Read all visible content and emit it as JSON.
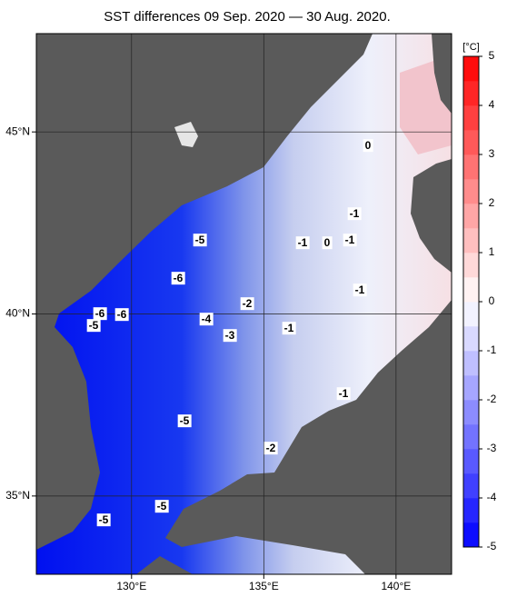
{
  "chart_data": {
    "type": "map",
    "title": "SST differences 09 Sep. 2020 — 30 Aug. 2020.",
    "xlim": [
      126.4,
      142.1
    ],
    "ylim": [
      32.85,
      47.7
    ],
    "xticks": [
      {
        "value": 130,
        "label": "130°E"
      },
      {
        "value": 135,
        "label": "135°E"
      },
      {
        "value": 140,
        "label": "140°E"
      }
    ],
    "yticks": [
      {
        "value": 35,
        "label": "35°N"
      },
      {
        "value": 40,
        "label": "40°N"
      },
      {
        "value": 45,
        "label": "45°N"
      }
    ],
    "grid": true,
    "colorbar": {
      "label": "[°C]",
      "lim": [
        -5,
        5
      ],
      "ticks": [
        -5,
        -4,
        -3,
        -2,
        -1,
        0,
        1,
        2,
        3,
        4,
        5
      ],
      "colors": [
        "#0000ff",
        "#ffffff",
        "#ff0000"
      ]
    },
    "contour_labels": [
      -5,
      -6,
      -6,
      -6,
      -5,
      -4,
      -3,
      -2,
      -1,
      -1,
      -1,
      0,
      -1,
      0,
      -1,
      -1,
      -5,
      -2,
      -5,
      -5
    ]
  }
}
